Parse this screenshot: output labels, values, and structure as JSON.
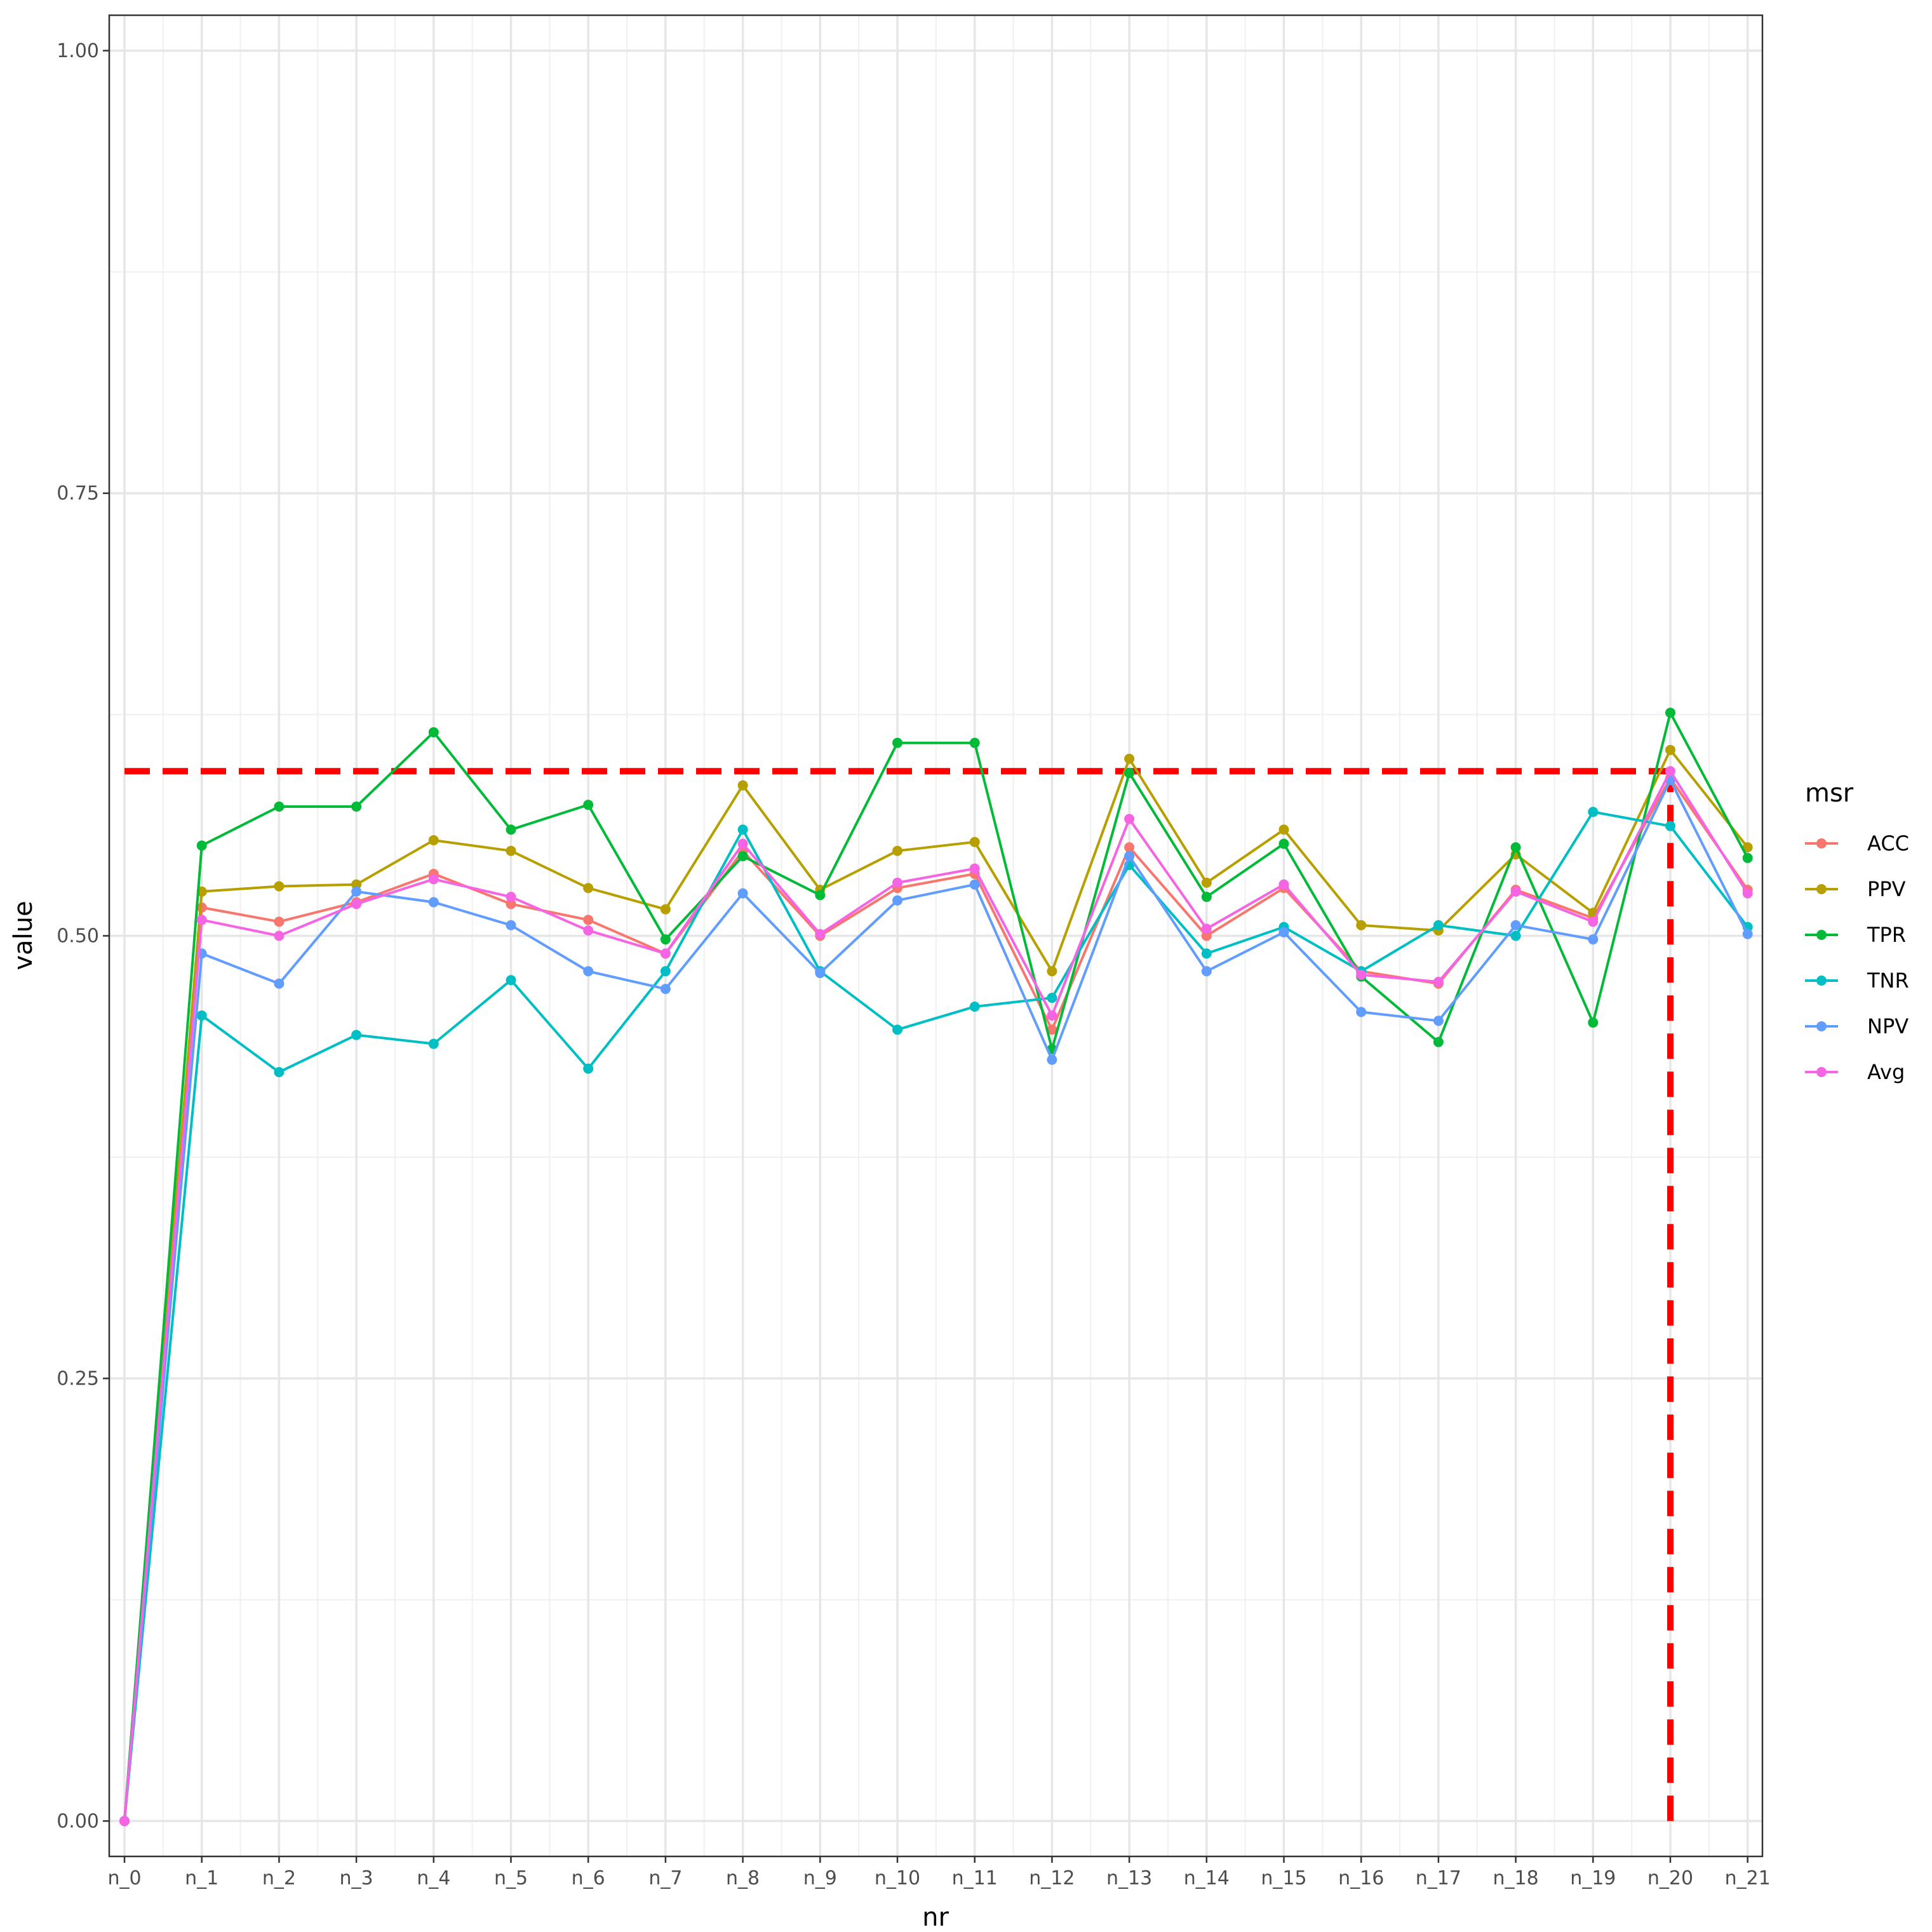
{
  "chart_data": {
    "type": "line",
    "xlabel": "nr",
    "ylabel": "value",
    "categories": [
      "n_0",
      "n_1",
      "n_2",
      "n_3",
      "n_4",
      "n_5",
      "n_6",
      "n_7",
      "n_8",
      "n_9",
      "n_10",
      "n_11",
      "n_12",
      "n_13",
      "n_14",
      "n_15",
      "n_16",
      "n_17",
      "n_18",
      "n_19",
      "n_20",
      "n_21"
    ],
    "ylim": [
      -0.02,
      1.02
    ],
    "yticks": [
      0.0,
      0.25,
      0.5,
      0.75,
      1.0
    ],
    "ytick_labels": [
      "0.00",
      "0.25",
      "0.50",
      "0.75",
      "1.00"
    ],
    "grid": true,
    "legend": {
      "title": "msr",
      "position": "right"
    },
    "series": [
      {
        "name": "ACC",
        "color": "#F8766D",
        "values": [
          0,
          0.516,
          0.508,
          0.519,
          0.535,
          0.518,
          0.509,
          0.49,
          0.548,
          0.5,
          0.527,
          0.535,
          0.447,
          0.55,
          0.5,
          0.527,
          0.48,
          0.473,
          0.526,
          0.51,
          0.589,
          0.526
        ]
      },
      {
        "name": "PPV",
        "color": "#B79F00",
        "values": [
          0,
          0.525,
          0.528,
          0.529,
          0.554,
          0.548,
          0.527,
          0.515,
          0.585,
          0.526,
          0.548,
          0.553,
          0.48,
          0.6,
          0.53,
          0.56,
          0.506,
          0.503,
          0.546,
          0.513,
          0.605,
          0.55
        ]
      },
      {
        "name": "TPR",
        "color": "#00BA38",
        "values": [
          0,
          0.551,
          0.573,
          0.573,
          0.615,
          0.56,
          0.574,
          0.498,
          0.545,
          0.523,
          0.609,
          0.609,
          0.436,
          0.592,
          0.522,
          0.552,
          0.477,
          0.44,
          0.55,
          0.451,
          0.626,
          0.544
        ]
      },
      {
        "name": "TNR",
        "color": "#00BFC4",
        "values": [
          0,
          0.455,
          0.423,
          0.444,
          0.439,
          0.475,
          0.425,
          0.48,
          0.56,
          0.48,
          0.447,
          0.46,
          0.465,
          0.54,
          0.49,
          0.505,
          0.48,
          0.506,
          0.5,
          0.57,
          0.562,
          0.505
        ]
      },
      {
        "name": "NPV",
        "color": "#619CFF",
        "values": [
          0,
          0.49,
          0.473,
          0.525,
          0.519,
          0.506,
          0.48,
          0.47,
          0.524,
          0.479,
          0.52,
          0.529,
          0.43,
          0.545,
          0.48,
          0.502,
          0.457,
          0.452,
          0.506,
          0.498,
          0.588,
          0.501
        ]
      },
      {
        "name": "Avg",
        "color": "#F564E3",
        "values": [
          0,
          0.509,
          0.5,
          0.518,
          0.532,
          0.522,
          0.503,
          0.49,
          0.552,
          0.501,
          0.53,
          0.538,
          0.455,
          0.566,
          0.504,
          0.529,
          0.478,
          0.474,
          0.525,
          0.508,
          0.593,
          0.524
        ]
      }
    ],
    "reference_lines": {
      "color": "#FF0000",
      "horizontal_y": 0.593,
      "vertical_x": "n_20"
    }
  }
}
